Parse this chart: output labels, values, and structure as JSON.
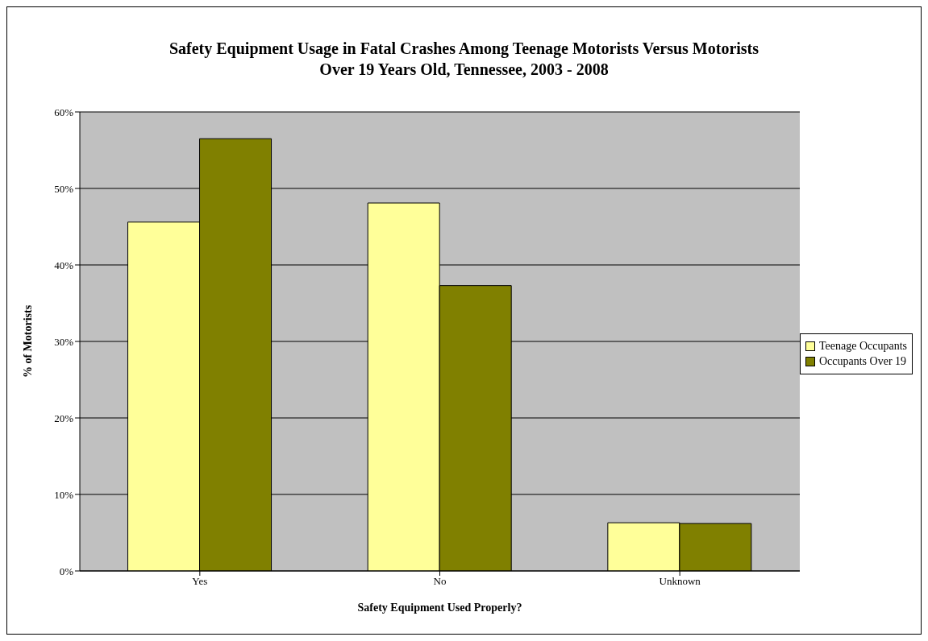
{
  "chart_data": {
    "type": "bar",
    "title": "Safety Equipment Usage in Fatal Crashes Among Teenage Motorists Versus Motorists Over 19 Years Old, Tennessee, 2003 - 2008",
    "xlabel": "Safety Equipment Used Properly?",
    "ylabel": "% of Motorists",
    "categories": [
      "Yes",
      "No",
      "Unknown"
    ],
    "series": [
      {
        "name": "Teenage Occupants",
        "color": "#ffff99",
        "values": [
          45.6,
          48.1,
          6.3
        ]
      },
      {
        "name": "Occupants Over 19",
        "color": "#808000",
        "values": [
          56.5,
          37.3,
          6.2
        ]
      }
    ],
    "ylim": [
      0,
      60
    ],
    "yticks": [
      {
        "value": 0,
        "label": "0%"
      },
      {
        "value": 10,
        "label": "10%"
      },
      {
        "value": 20,
        "label": "20%"
      },
      {
        "value": 30,
        "label": "30%"
      },
      {
        "value": 40,
        "label": "40%"
      },
      {
        "value": 50,
        "label": "50%"
      },
      {
        "value": 60,
        "label": "60%"
      }
    ],
    "grid": "y",
    "legend": "right"
  }
}
